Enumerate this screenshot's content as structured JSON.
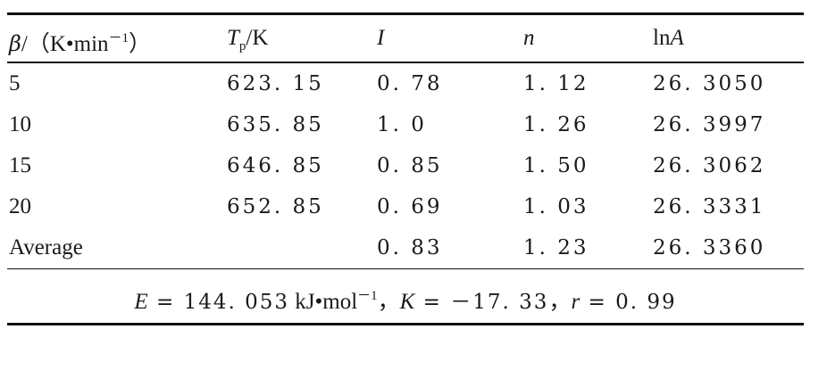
{
  "table": {
    "header": {
      "col0_symbol": "β",
      "col0_unit": "/（K•min",
      "col0_unit_sup": "－1",
      "col0_unit_close": "）",
      "col1_symbol": "T",
      "col1_sub": "p",
      "col1_unit": "/K",
      "col2": "I",
      "col3": "n",
      "col4_prefix": "ln",
      "col4_symbol": "A"
    },
    "rows": [
      {
        "beta": "5",
        "tp": "623. 15",
        "i": "0. 78",
        "n": "1. 12",
        "lna": "26. 3050"
      },
      {
        "beta": "10",
        "tp": "635. 85",
        "i": "1. 0",
        "n": "1. 26",
        "lna": "26. 3997"
      },
      {
        "beta": "15",
        "tp": "646. 85",
        "i": "0. 85",
        "n": "1. 50",
        "lna": "26. 3062"
      },
      {
        "beta": "20",
        "tp": "652. 85",
        "i": "0. 69",
        "n": "1. 03",
        "lna": "26. 3331"
      },
      {
        "beta": "Average",
        "tp": "",
        "i": "0. 83",
        "n": "1. 23",
        "lna": "26. 3360"
      }
    ],
    "footer": {
      "e_symbol": "E",
      "e_value": " = 144. 053",
      "e_unit": " kJ•mol",
      "e_unit_sup": "－1",
      "sep1": "，",
      "k_symbol": "K",
      "k_value": " = －17. 33",
      "sep2": "，",
      "r_symbol": "r",
      "r_value": " = 0. 99"
    }
  }
}
